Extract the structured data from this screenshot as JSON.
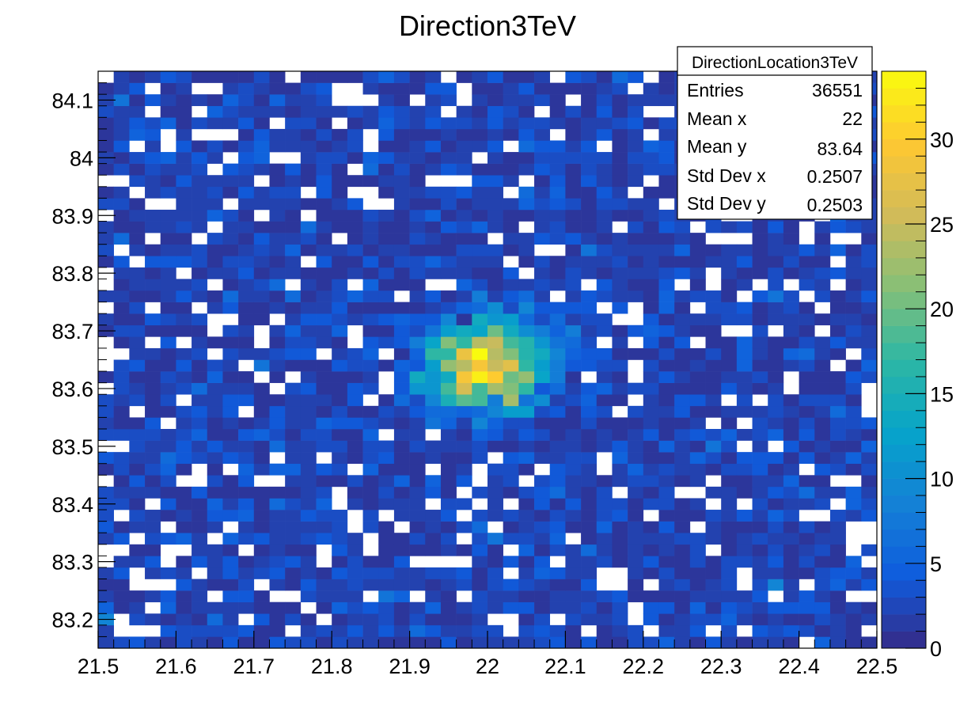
{
  "chart_data": {
    "type": "heatmap",
    "title": "Direction3TeV",
    "xlabel": "",
    "ylabel": "",
    "xlim": [
      21.5,
      22.5
    ],
    "ylim": [
      83.15,
      84.15
    ],
    "bins": {
      "nx": 50,
      "ny": 50
    },
    "x_ticks": [
      "21.5",
      "21.6",
      "21.7",
      "21.8",
      "21.9",
      "22",
      "22.1",
      "22.2",
      "22.3",
      "22.4",
      "22.5"
    ],
    "y_ticks": [
      "83.2",
      "83.3",
      "83.4",
      "83.5",
      "83.6",
      "83.7",
      "83.8",
      "83.9",
      "84",
      "84.1"
    ],
    "x_tick_values": [
      21.5,
      21.6,
      21.7,
      21.8,
      21.9,
      22.0,
      22.1,
      22.2,
      22.3,
      22.4,
      22.5
    ],
    "y_tick_values": [
      83.2,
      83.3,
      83.4,
      83.5,
      83.6,
      83.7,
      83.8,
      83.9,
      84.0,
      84.1
    ],
    "distribution": {
      "description_of_pattern": "2D Gaussian peak on a flat background",
      "peak_x": 22.0,
      "peak_y": 83.64,
      "sigma": 0.05,
      "peak_counts": 33,
      "background_counts": 2
    },
    "colorbar": {
      "min": 0,
      "max": 34,
      "ticks": [
        "0",
        "5",
        "10",
        "15",
        "20",
        "25",
        "30"
      ],
      "tick_values": [
        0,
        5,
        10,
        15,
        20,
        25,
        30
      ],
      "palette": "kBird",
      "colors": [
        "#352a87",
        "#0f5cdd",
        "#1481d6",
        "#06a4ca",
        "#2eb7a4",
        "#87bf77",
        "#d1bb59",
        "#fec832",
        "#f9fb0e"
      ]
    },
    "stats": {
      "name": "DirectionLocation3TeV",
      "rows": [
        {
          "label": "Entries",
          "value": "36551"
        },
        {
          "label": "Mean x",
          "value": "22"
        },
        {
          "label": "Mean y",
          "value": "83.64"
        },
        {
          "label": "Std Dev x",
          "value": "0.2507"
        },
        {
          "label": "Std Dev y",
          "value": "0.2503"
        }
      ]
    },
    "grid": false
  }
}
